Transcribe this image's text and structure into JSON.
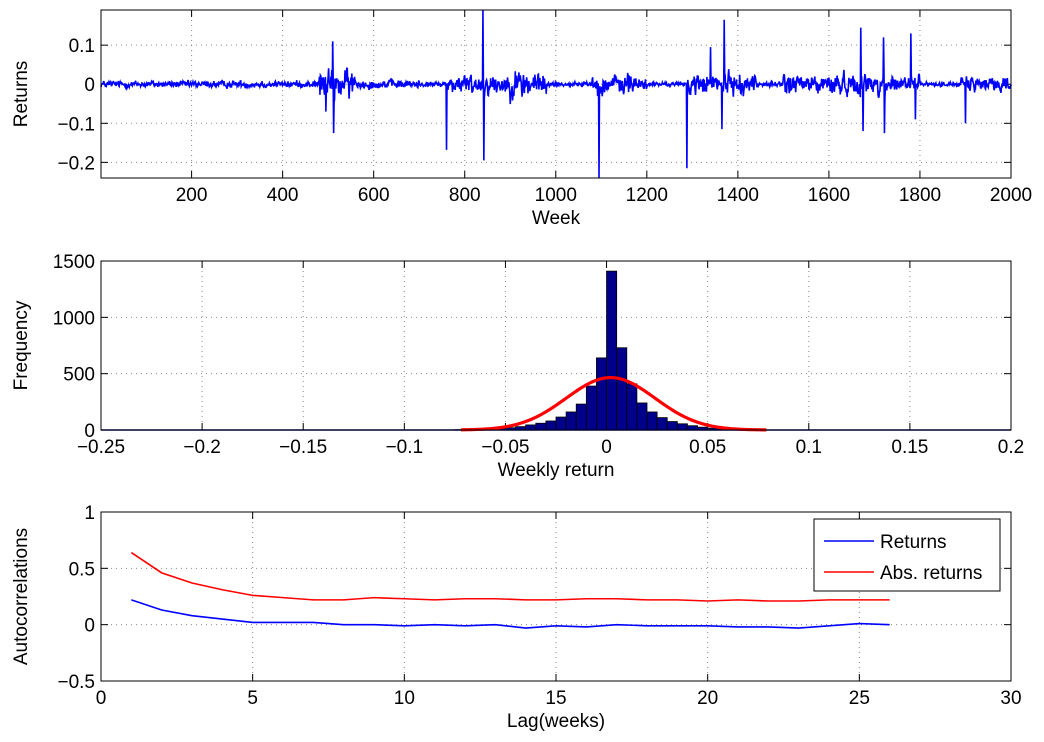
{
  "chart_data": [
    {
      "type": "line",
      "xlabel": "Week",
      "ylabel": "Returns",
      "xlim": [
        1,
        2000
      ],
      "ylim": [
        -0.24,
        0.19
      ],
      "xticks": [
        200,
        400,
        600,
        800,
        1000,
        1200,
        1400,
        1600,
        1800,
        2000
      ],
      "xtick_labels": [
        "200",
        "400",
        "600",
        "800",
        "1000",
        "1200",
        "1400",
        "1600",
        "1800",
        "2000"
      ],
      "yticks": [
        -0.2,
        -0.1,
        0,
        0.1
      ],
      "ytick_labels": [
        "−0.2",
        "−0.1",
        "0",
        "0.1"
      ],
      "grid": true,
      "series": [
        {
          "color": "#0000ff",
          "noise_profile": [
            {
              "from": 1,
              "to": 480,
              "amp": 0.012
            },
            {
              "from": 480,
              "to": 560,
              "amp": 0.05
            },
            {
              "from": 560,
              "to": 700,
              "amp": 0.015
            },
            {
              "from": 700,
              "to": 760,
              "amp": 0.008
            },
            {
              "from": 760,
              "to": 900,
              "amp": 0.035
            },
            {
              "from": 900,
              "to": 980,
              "amp": 0.05
            },
            {
              "from": 980,
              "to": 1080,
              "amp": 0.008
            },
            {
              "from": 1080,
              "to": 1200,
              "amp": 0.035
            },
            {
              "from": 1200,
              "to": 1290,
              "amp": 0.007
            },
            {
              "from": 1290,
              "to": 1440,
              "amp": 0.035
            },
            {
              "from": 1440,
              "to": 1500,
              "amp": 0.01
            },
            {
              "from": 1500,
              "to": 1800,
              "amp": 0.035
            },
            {
              "from": 1800,
              "to": 1890,
              "amp": 0.007
            },
            {
              "from": 1890,
              "to": 2000,
              "amp": 0.025
            }
          ],
          "spikes": [
            {
              "x": 495,
              "y": -0.07
            },
            {
              "x": 510,
              "y": 0.11
            },
            {
              "x": 512,
              "y": -0.125
            },
            {
              "x": 760,
              "y": -0.168
            },
            {
              "x": 840,
              "y": 0.19
            },
            {
              "x": 842,
              "y": -0.195
            },
            {
              "x": 1095,
              "y": -0.24
            },
            {
              "x": 1288,
              "y": -0.215
            },
            {
              "x": 1340,
              "y": 0.095
            },
            {
              "x": 1365,
              "y": -0.115
            },
            {
              "x": 1370,
              "y": 0.165
            },
            {
              "x": 1670,
              "y": 0.145
            },
            {
              "x": 1675,
              "y": -0.12
            },
            {
              "x": 1720,
              "y": 0.12
            },
            {
              "x": 1722,
              "y": -0.125
            },
            {
              "x": 1780,
              "y": 0.13
            },
            {
              "x": 1790,
              "y": -0.09
            },
            {
              "x": 1900,
              "y": -0.1
            }
          ]
        }
      ]
    },
    {
      "type": "histogram",
      "xlabel": "Weekly return",
      "ylabel": "Frequency",
      "xlim": [
        -0.25,
        0.2
      ],
      "ylim": [
        0,
        1500
      ],
      "xticks": [
        -0.25,
        -0.2,
        -0.15,
        -0.1,
        -0.05,
        0,
        0.05,
        0.1,
        0.15,
        0.2
      ],
      "xtick_labels": [
        "−0.25",
        "−0.2",
        "−0.15",
        "−0.1",
        "−0.05",
        "0",
        "0.05",
        "0.1",
        "0.15",
        "0.2"
      ],
      "yticks": [
        0,
        500,
        1000,
        1500
      ],
      "ytick_labels": [
        "0",
        "500",
        "1000",
        "1500"
      ],
      "grid": true,
      "bin_width": 0.005,
      "bins": [
        {
          "x": -0.0725,
          "y": 3
        },
        {
          "x": -0.0675,
          "y": 4
        },
        {
          "x": -0.0625,
          "y": 6
        },
        {
          "x": -0.0575,
          "y": 8
        },
        {
          "x": -0.0525,
          "y": 12
        },
        {
          "x": -0.0475,
          "y": 20
        },
        {
          "x": -0.0425,
          "y": 30
        },
        {
          "x": -0.0375,
          "y": 45
        },
        {
          "x": -0.0325,
          "y": 60
        },
        {
          "x": -0.0275,
          "y": 80
        },
        {
          "x": -0.0225,
          "y": 115
        },
        {
          "x": -0.0175,
          "y": 160
        },
        {
          "x": -0.0125,
          "y": 230
        },
        {
          "x": -0.0075,
          "y": 390
        },
        {
          "x": -0.0025,
          "y": 640
        },
        {
          "x": 0.0025,
          "y": 1410
        },
        {
          "x": 0.0075,
          "y": 730
        },
        {
          "x": 0.0125,
          "y": 410
        },
        {
          "x": 0.0175,
          "y": 240
        },
        {
          "x": 0.0225,
          "y": 160
        },
        {
          "x": 0.0275,
          "y": 110
        },
        {
          "x": 0.0325,
          "y": 75
        },
        {
          "x": 0.0375,
          "y": 55
        },
        {
          "x": 0.0425,
          "y": 38
        },
        {
          "x": 0.0475,
          "y": 25
        },
        {
          "x": 0.0525,
          "y": 16
        },
        {
          "x": 0.0575,
          "y": 10
        },
        {
          "x": 0.0625,
          "y": 6
        },
        {
          "x": 0.0675,
          "y": 4
        },
        {
          "x": 0.0725,
          "y": 3
        }
      ],
      "bar_color": "#00008b",
      "normal_fit": {
        "mean": 0.002,
        "sd": 0.022,
        "peak": 465,
        "x_range": [
          -0.072,
          0.079
        ],
        "color": "#ff0000"
      }
    },
    {
      "type": "line",
      "xlabel": "Lag(weeks)",
      "ylabel": "Autocorrelations",
      "xlim": [
        0,
        30
      ],
      "ylim": [
        -0.5,
        1
      ],
      "xticks": [
        0,
        5,
        10,
        15,
        20,
        25,
        30
      ],
      "xtick_labels": [
        "0",
        "5",
        "10",
        "15",
        "20",
        "25",
        "30"
      ],
      "yticks": [
        -0.5,
        0,
        0.5,
        1
      ],
      "ytick_labels": [
        "−0.5",
        "0",
        "0.5",
        "1"
      ],
      "grid": true,
      "legend_position": "top-right",
      "series": [
        {
          "name": "Returns",
          "color": "#0000ff",
          "x": [
            1,
            2,
            3,
            4,
            5,
            6,
            7,
            8,
            9,
            10,
            11,
            12,
            13,
            14,
            15,
            16,
            17,
            18,
            19,
            20,
            21,
            22,
            23,
            24,
            25,
            26
          ],
          "y": [
            0.22,
            0.13,
            0.08,
            0.05,
            0.02,
            0.02,
            0.02,
            0.0,
            0.0,
            -0.01,
            0.0,
            -0.01,
            0.0,
            -0.03,
            -0.01,
            -0.02,
            0.0,
            -0.01,
            -0.01,
            -0.01,
            -0.02,
            -0.02,
            -0.03,
            -0.01,
            0.01,
            0.0
          ]
        },
        {
          "name": "Abs. returns",
          "color": "#ff0000",
          "x": [
            1,
            2,
            3,
            4,
            5,
            6,
            7,
            8,
            9,
            10,
            11,
            12,
            13,
            14,
            15,
            16,
            17,
            18,
            19,
            20,
            21,
            22,
            23,
            24,
            25,
            26
          ],
          "y": [
            0.64,
            0.46,
            0.37,
            0.31,
            0.26,
            0.24,
            0.22,
            0.22,
            0.24,
            0.23,
            0.22,
            0.23,
            0.23,
            0.22,
            0.22,
            0.23,
            0.23,
            0.22,
            0.22,
            0.21,
            0.22,
            0.21,
            0.21,
            0.22,
            0.22,
            0.22
          ]
        }
      ]
    }
  ]
}
